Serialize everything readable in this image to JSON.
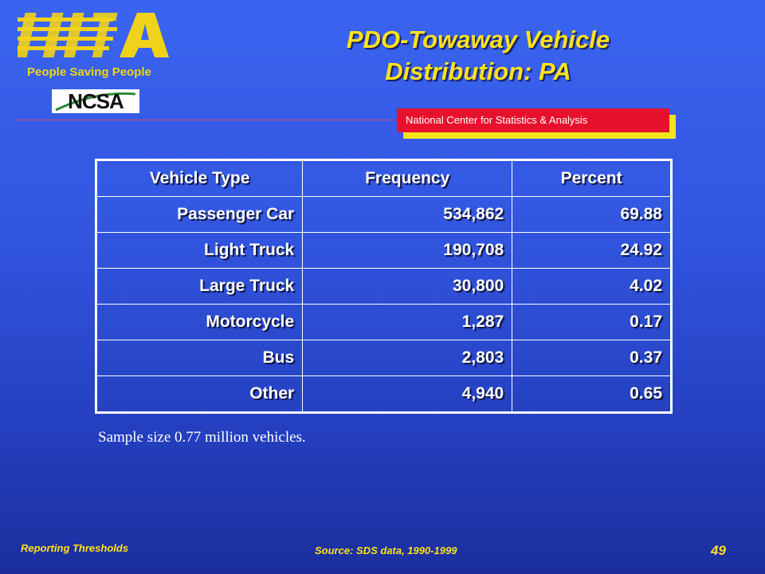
{
  "header": {
    "logo_text": "NHTSA",
    "tagline": "People Saving People",
    "ncsa_logo_text": "NCSA",
    "center_label": "National Center for Statistics & Analysis"
  },
  "slide": {
    "title_line1": "PDO-Towaway Vehicle",
    "title_line2": "Distribution: PA"
  },
  "table": {
    "headers": [
      "Vehicle Type",
      "Frequency",
      "Percent"
    ],
    "rows": [
      [
        "Passenger Car",
        "534,862",
        "69.88"
      ],
      [
        "Light Truck",
        "190,708",
        "24.92"
      ],
      [
        "Large Truck",
        "30,800",
        "4.02"
      ],
      [
        "Motorcycle",
        "1,287",
        "0.17"
      ],
      [
        "Bus",
        "2,803",
        "0.37"
      ],
      [
        "Other",
        "4,940",
        "0.65"
      ]
    ]
  },
  "note": "Sample size 0.77 million vehicles.",
  "footer": {
    "left": "Reporting Thresholds",
    "source": "Source: SDS data, 1990-1999",
    "page": "49"
  },
  "colors": {
    "title": "#ffe21a",
    "center_box": "#e8112d",
    "center_box_shadow": "#f3e41c",
    "background": "#3256e0"
  }
}
